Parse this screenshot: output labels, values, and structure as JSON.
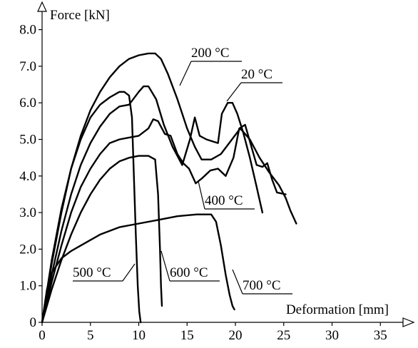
{
  "chart_data": {
    "type": "line",
    "title": "",
    "xlabel": "Deformation [mm]",
    "ylabel": "Force [kN]",
    "xlim": [
      0,
      37
    ],
    "ylim": [
      0,
      8.4
    ],
    "x_ticks": [
      0,
      5,
      10,
      15,
      20,
      25,
      30,
      35
    ],
    "y_ticks": [
      "0",
      "1.0",
      "2.0",
      "3.0",
      "4.0",
      "5.0",
      "6.0",
      "7.0",
      "8.0"
    ],
    "grid": false,
    "legend": "none (series labelled directly on the plot)",
    "series": [
      {
        "name": "200 °C",
        "x": [
          0,
          1,
          2,
          3,
          4,
          5,
          6,
          7,
          8,
          9,
          10,
          11,
          11.7,
          12.3,
          13,
          14,
          15,
          15.8,
          16.5,
          17.5,
          18.5,
          19.5,
          20.5,
          21.5,
          22.5,
          23.5,
          24.5,
          25.2,
          25.7,
          26.3
        ],
        "y": [
          0,
          1.6,
          3.0,
          4.2,
          5.1,
          5.8,
          6.3,
          6.7,
          7.0,
          7.2,
          7.3,
          7.35,
          7.35,
          7.2,
          6.8,
          6.1,
          5.3,
          4.8,
          4.45,
          4.45,
          4.6,
          4.95,
          5.3,
          5.0,
          4.5,
          4.1,
          3.75,
          3.4,
          3.05,
          2.7
        ]
      },
      {
        "name": "20 °C",
        "x": [
          0,
          1,
          2,
          3,
          4,
          5,
          6,
          7,
          8,
          9,
          10,
          10.5,
          11,
          11.8,
          12.6,
          13.5,
          14.5,
          15.3,
          15.8,
          16.3,
          17,
          17.6,
          18.2,
          18.6,
          19.2,
          19.7,
          20.2,
          20.8,
          21.5,
          22.2,
          22.8
        ],
        "y": [
          0,
          1.3,
          2.5,
          3.5,
          4.3,
          4.9,
          5.35,
          5.7,
          5.9,
          5.95,
          6.3,
          6.45,
          6.45,
          6.1,
          5.4,
          4.8,
          4.3,
          5.0,
          5.6,
          5.1,
          5.0,
          4.95,
          4.9,
          5.7,
          6.0,
          6.0,
          5.7,
          5.2,
          4.5,
          3.7,
          3.0
        ]
      },
      {
        "name": "400 °C",
        "x": [
          0,
          1,
          2,
          3,
          4,
          5,
          6,
          7,
          8,
          9,
          10,
          11,
          11.5,
          12,
          12.7,
          13.3,
          14,
          14.6,
          15.2,
          15.9,
          16.6,
          17.4,
          18.2,
          19,
          19.8,
          20.4,
          21,
          21.6,
          22.2,
          22.8,
          23.3,
          23.8,
          24.3,
          25.2
        ],
        "y": [
          0,
          1.1,
          2.1,
          3.0,
          3.7,
          4.2,
          4.6,
          4.9,
          5.0,
          5.05,
          5.1,
          5.3,
          5.55,
          5.5,
          5.15,
          5.1,
          4.6,
          4.35,
          4.2,
          3.8,
          3.95,
          4.15,
          4.2,
          4.0,
          4.5,
          5.3,
          5.4,
          4.85,
          4.3,
          4.25,
          4.35,
          3.9,
          3.55,
          3.5
        ]
      },
      {
        "name": "500 °C",
        "x": [
          0,
          1,
          2,
          3,
          4,
          5,
          6,
          7,
          8,
          8.5,
          9,
          9.3,
          9.5,
          9.7,
          9.9,
          10.05,
          10.2
        ],
        "y": [
          0,
          1.7,
          3.1,
          4.2,
          5.0,
          5.6,
          5.95,
          6.15,
          6.3,
          6.3,
          6.2,
          5.6,
          4.0,
          2.4,
          1.0,
          0.3,
          0
        ]
      },
      {
        "name": "600 °C",
        "x": [
          0,
          1,
          2,
          3,
          4,
          5,
          6,
          7,
          8,
          9,
          10,
          11,
          11.7,
          12,
          12.2,
          12.3,
          12.4
        ],
        "y": [
          0,
          0.9,
          1.7,
          2.4,
          3.0,
          3.5,
          3.9,
          4.2,
          4.4,
          4.5,
          4.55,
          4.55,
          4.45,
          3.5,
          2.0,
          1.0,
          0.45
        ]
      },
      {
        "name": "700 °C",
        "x": [
          0,
          0.5,
          1,
          2,
          3,
          4,
          5,
          6,
          8,
          10,
          12,
          14,
          16,
          17.5,
          18,
          18.5,
          19,
          19.4,
          19.7,
          19.9
        ],
        "y": [
          0,
          0.9,
          1.35,
          1.75,
          1.95,
          2.1,
          2.25,
          2.4,
          2.6,
          2.7,
          2.8,
          2.9,
          2.95,
          2.95,
          2.75,
          2.1,
          1.3,
          0.75,
          0.45,
          0.35
        ]
      }
    ]
  }
}
